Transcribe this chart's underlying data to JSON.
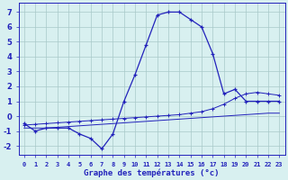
{
  "hours": [
    0,
    1,
    2,
    3,
    4,
    5,
    6,
    7,
    8,
    9,
    10,
    11,
    12,
    13,
    14,
    15,
    16,
    17,
    18,
    19,
    20,
    21,
    22,
    23
  ],
  "temp": [
    -0.5,
    -1.0,
    -0.8,
    -0.8,
    -0.8,
    -1.2,
    -1.5,
    -2.2,
    -1.2,
    1.0,
    2.8,
    4.8,
    6.8,
    7.0,
    7.0,
    6.5,
    6.0,
    4.2,
    1.5,
    1.8,
    1.0,
    1.0,
    1.0,
    1.0
  ],
  "avg_max": [
    -0.6,
    -0.55,
    -0.5,
    -0.45,
    -0.4,
    -0.35,
    -0.3,
    -0.25,
    -0.2,
    -0.15,
    -0.1,
    -0.05,
    0.0,
    0.05,
    0.1,
    0.2,
    0.3,
    0.5,
    0.8,
    1.2,
    1.5,
    1.6,
    1.5,
    1.4
  ],
  "avg_min": [
    -0.8,
    -0.8,
    -0.8,
    -0.75,
    -0.7,
    -0.65,
    -0.6,
    -0.55,
    -0.5,
    -0.45,
    -0.4,
    -0.35,
    -0.3,
    -0.25,
    -0.2,
    -0.15,
    -0.1,
    -0.05,
    0.0,
    0.05,
    0.1,
    0.15,
    0.2,
    0.2
  ],
  "line_color": "#2222bb",
  "bg_color": "#d8f0f0",
  "grid_color": "#a8c8c8",
  "xlabel": "Graphe des températures (°c)",
  "ylabel_ticks": [
    -2,
    -1,
    0,
    1,
    2,
    3,
    4,
    5,
    6,
    7
  ],
  "xlim": [
    -0.5,
    23.5
  ],
  "ylim": [
    -2.6,
    7.6
  ],
  "tick_color": "#2222bb",
  "label_color": "#2222bb"
}
